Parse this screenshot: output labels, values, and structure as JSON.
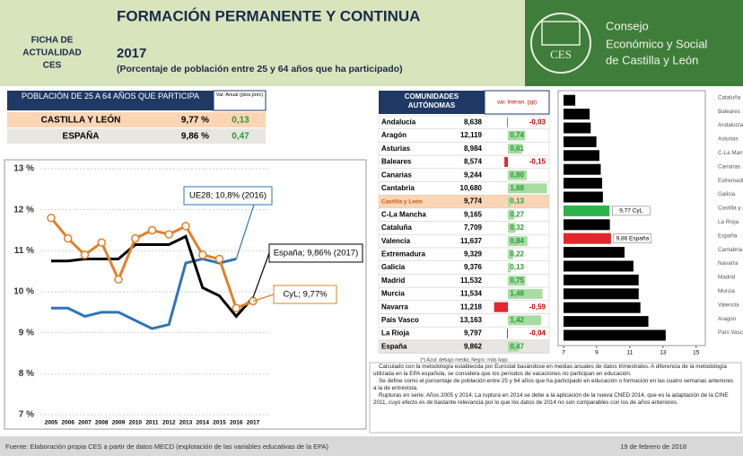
{
  "header": {
    "badge_lines": [
      "FICHA DE",
      "ACTUALIDAD",
      "CES"
    ],
    "title": "FORMACIÓN PERMANENTE Y CONTINUA",
    "year": "2017",
    "subtitle": "(Porcentaje de población entre 25 y 64 años que ha participado)",
    "logo_text": "CES",
    "org_lines": [
      "Consejo",
      "Económico y Social",
      "de Castilla y León"
    ]
  },
  "summary": {
    "header": "POBLACIÓN DE 25 A 64 AÑOS QUE PARTICIPA",
    "var_header": "Var. Anual (ptos.porc)",
    "rows": [
      [
        "CASTILLA Y LEÓN",
        "9,77 %",
        "0,13"
      ],
      [
        "ESPAÑA",
        "9,86 %",
        "0,47"
      ]
    ]
  },
  "chart_data": [
    {
      "type": "line",
      "categories": [
        "2005",
        "2006",
        "2007",
        "2008",
        "2009",
        "2010",
        "2011",
        "2012",
        "2013",
        "2014",
        "2015",
        "2016",
        "2017"
      ],
      "series": [
        {
          "color": "#2e75b6",
          "values": [
            9.6,
            9.6,
            9.4,
            9.5,
            9.5,
            9.3,
            9.1,
            9.2,
            10.7,
            10.8,
            10.7,
            10.8,
            null
          ]
        },
        {
          "color": "#000000",
          "values": [
            10.75,
            10.75,
            10.8,
            10.8,
            10.8,
            11.15,
            11.15,
            11.15,
            11.35,
            10.1,
            9.9,
            9.4,
            9.86
          ]
        },
        {
          "color": "#e0812b",
          "values": [
            11.8,
            11.3,
            10.9,
            11.2,
            10.3,
            11.3,
            11.5,
            11.4,
            11.6,
            10.9,
            10.8,
            9.6,
            9.77
          ],
          "markers": true
        }
      ],
      "ylim": [
        7,
        13
      ],
      "yticks": [
        {
          "value": 7,
          "label": "7 %"
        },
        {
          "value": 8,
          "label": "8 %"
        },
        {
          "value": 9,
          "label": "9 %"
        },
        {
          "value": 10,
          "label": "10 %"
        },
        {
          "value": 11,
          "label": "11 %"
        },
        {
          "value": 12,
          "label": "12 %"
        },
        {
          "value": 13,
          "label": "13 %"
        }
      ],
      "grid": true,
      "annotations": [
        "UE28; 10,8% (2016)",
        "España; 9,86% (2017)",
        "CyL; 9,77%"
      ]
    },
    {
      "type": "bar",
      "orientation": "horizontal",
      "categories": [
        "Cataluña",
        "Baleares",
        "Andalucía",
        "Asturias",
        "C-La Mancha",
        "Canarias",
        "Extremadura",
        "Galicia",
        "Castilla y León",
        "La Rioja",
        "España",
        "Cantabria",
        "Navarra",
        "Madrid",
        "Murcia",
        "Valencia",
        "Aragón",
        "País Vasco"
      ],
      "values": [
        7.709,
        8.574,
        8.638,
        8.984,
        9.165,
        9.244,
        9.329,
        9.376,
        9.774,
        9.797,
        9.862,
        10.68,
        11.218,
        11.532,
        11.534,
        11.637,
        12.119,
        13.163
      ],
      "value_labels": [
        null,
        null,
        null,
        null,
        null,
        null,
        null,
        null,
        "9,77 CyL",
        null,
        "9,86 España",
        null,
        null,
        null,
        null,
        null,
        null,
        null
      ],
      "colors": [
        "#000",
        "#000",
        "#000",
        "#000",
        "#000",
        "#000",
        "#000",
        "#000",
        "#2db34a",
        "#000",
        "#e3262b",
        "#000",
        "#000",
        "#000",
        "#000",
        "#000",
        "#000",
        "#000"
      ],
      "xlim": [
        7,
        15.5
      ],
      "xticks": [
        7,
        9,
        11,
        13,
        15
      ]
    }
  ],
  "table": {
    "headers": [
      "COMUNIDADES AUTÓNOMAS",
      "var. Interan. (pp)"
    ],
    "rows": [
      {
        "name": "Andalucía",
        "rate": "8,638",
        "var": -0.03,
        "var_label": "-0,03"
      },
      {
        "name": "Aragón",
        "rate": "12,119",
        "var": 0.74,
        "var_label": "0,74"
      },
      {
        "name": "Asturias",
        "rate": "8,984",
        "var": 0.61,
        "var_label": "0,61"
      },
      {
        "name": "Baleares",
        "rate": "8,574",
        "var": -0.15,
        "var_label": "-0,15"
      },
      {
        "name": "Canarias",
        "rate": "9,244",
        "var": 0.8,
        "var_label": "0,80"
      },
      {
        "name": "Cantabria",
        "rate": "10,680",
        "var": 1.68,
        "var_label": "1,68"
      },
      {
        "name": "Castilla y León",
        "rate": "9,774",
        "var": 0.13,
        "var_label": "0,13"
      },
      {
        "name": "C-La Mancha",
        "rate": "9,165",
        "var": 0.27,
        "var_label": "0,27"
      },
      {
        "name": "Cataluña",
        "rate": "7,709",
        "var": 0.32,
        "var_label": "0,32"
      },
      {
        "name": "Valencia",
        "rate": "11,637",
        "var": 0.84,
        "var_label": "0,84"
      },
      {
        "name": "Extremadura",
        "rate": "9,329",
        "var": 0.22,
        "var_label": "0,22"
      },
      {
        "name": "Galicia",
        "rate": "9,376",
        "var": 0.13,
        "var_label": "0,13"
      },
      {
        "name": "Madrid",
        "rate": "11,532",
        "var": 0.75,
        "var_label": "0,75"
      },
      {
        "name": "Murcia",
        "rate": "11,534",
        "var": 1.48,
        "var_label": "1,48"
      },
      {
        "name": "Navarra",
        "rate": "11,218",
        "var": -0.59,
        "var_label": "-0,59"
      },
      {
        "name": "País Vasco",
        "rate": "13,163",
        "var": 1.42,
        "var_label": "1,42"
      },
      {
        "name": "La Rioja",
        "rate": "9,797",
        "var": -0.04,
        "var_label": "-0,04"
      },
      {
        "name": "España",
        "rate": "9,862",
        "var": 0.47,
        "var_label": "0,47"
      }
    ],
    "note": "(*) Azul: debajo media; Negro: más bajo"
  },
  "notes": [
    "Calculado con la metodología establecida por Eurostat basándose en medias anuales de datos trimestrales. A diferencia de la metodología utilizada en la EPA española, se considera que los períodos de vacaciones no participan en educación.",
    "Se define como el porcentaje de población entre 25 y 64 años que ha participado en educación o formación en las cuatro semanas anteriores a la de entrevista.",
    "Rupturas en serie: Años 2005 y 2014. La ruptura en 2014 se debe a la aplicación de la nueva CNED 2014, que es la adaptación de la CINE 2011, cuyo efecto es de bastante relevancia por lo que los datos de 2014 no son comparables con los de años anteriores."
  ],
  "footer": {
    "source": "Fuente: Elaboración propia CES a partir de datos MECD (explotación de las variables educativas de la EPA)",
    "date": "19 de febrero de 2018"
  }
}
